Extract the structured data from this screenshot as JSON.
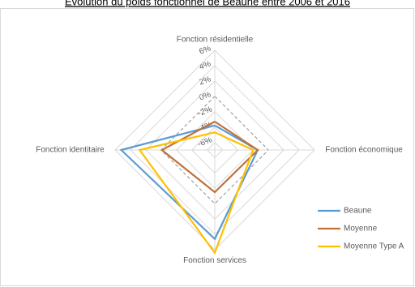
{
  "chart_data": {
    "type": "radar",
    "title": "Évolution du poids fonctionnel de Beaune entre 2006 et 2016",
    "categories": [
      "Fonction résidentielle",
      "Fonction économique",
      "Fonction services",
      "Fonction identitaire"
    ],
    "rlim": [
      -7,
      6
    ],
    "rticks": [
      {
        "value": -6,
        "label": "-6%"
      },
      {
        "value": -4,
        "label": "-4%"
      },
      {
        "value": -2,
        "label": "-2%"
      },
      {
        "value": 0,
        "label": "0%"
      },
      {
        "value": 2,
        "label": "2%"
      },
      {
        "value": 4,
        "label": "4%"
      },
      {
        "value": 6,
        "label": "6%"
      }
    ],
    "series": [
      {
        "name": "Beaune",
        "color": "#5b9bd5",
        "values": [
          -3.8,
          -1.4,
          4.6,
          5.2
        ]
      },
      {
        "name": "Moyenne",
        "color": "#c0723a",
        "values": [
          -3.3,
          -1.4,
          -1.5,
          -0.1
        ]
      },
      {
        "name": "Moyenne Type A",
        "color": "#ffc000",
        "values": [
          -4.7,
          -2.0,
          6.4,
          2.8
        ]
      }
    ],
    "legend": "right"
  }
}
